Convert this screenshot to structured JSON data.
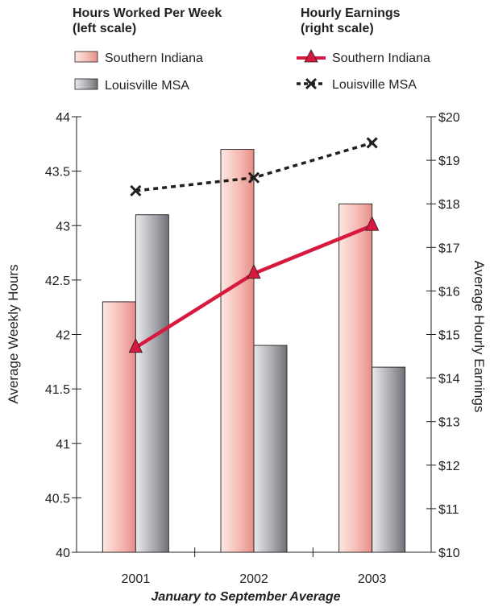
{
  "chart_data": {
    "type": "bar",
    "categories": [
      "2001",
      "2002",
      "2003"
    ],
    "legend": {
      "bars_title_line1": "Hours Worked Per Week",
      "bars_title_line2": "(left scale)",
      "lines_title_line1": "Hourly Earnings",
      "lines_title_line2": "(right scale)"
    },
    "bar_series": [
      {
        "name": "Southern Indiana",
        "values": [
          42.3,
          43.7,
          43.2
        ],
        "color": "#f2b4ad"
      },
      {
        "name": "Louisville MSA",
        "values": [
          43.1,
          41.9,
          41.7
        ],
        "color": "#a4a6ab"
      }
    ],
    "line_series": [
      {
        "name": "Southern Indiana",
        "values": [
          14.7,
          16.4,
          17.5
        ],
        "color": "#d7193f",
        "style": "solid-triangle"
      },
      {
        "name": "Louisville MSA",
        "values": [
          18.3,
          18.6,
          19.4
        ],
        "color": "#231f20",
        "style": "dashed-x"
      }
    ],
    "y_left": {
      "label": "Average Weekly Hours",
      "ylim": [
        40,
        44
      ],
      "ticks": [
        "40",
        "40.5",
        "41",
        "41.5",
        "42",
        "42.5",
        "43",
        "43.5",
        "44"
      ]
    },
    "y_right": {
      "label": "Average Hourly Earnings",
      "ylim": [
        10,
        20
      ],
      "ticks": [
        "$10",
        "$11",
        "$12",
        "$13",
        "$14",
        "$15",
        "$16",
        "$17",
        "$18",
        "$19",
        "$20"
      ]
    },
    "xlabel": "January to September Average",
    "grid": false,
    "legend_placement": "top"
  }
}
